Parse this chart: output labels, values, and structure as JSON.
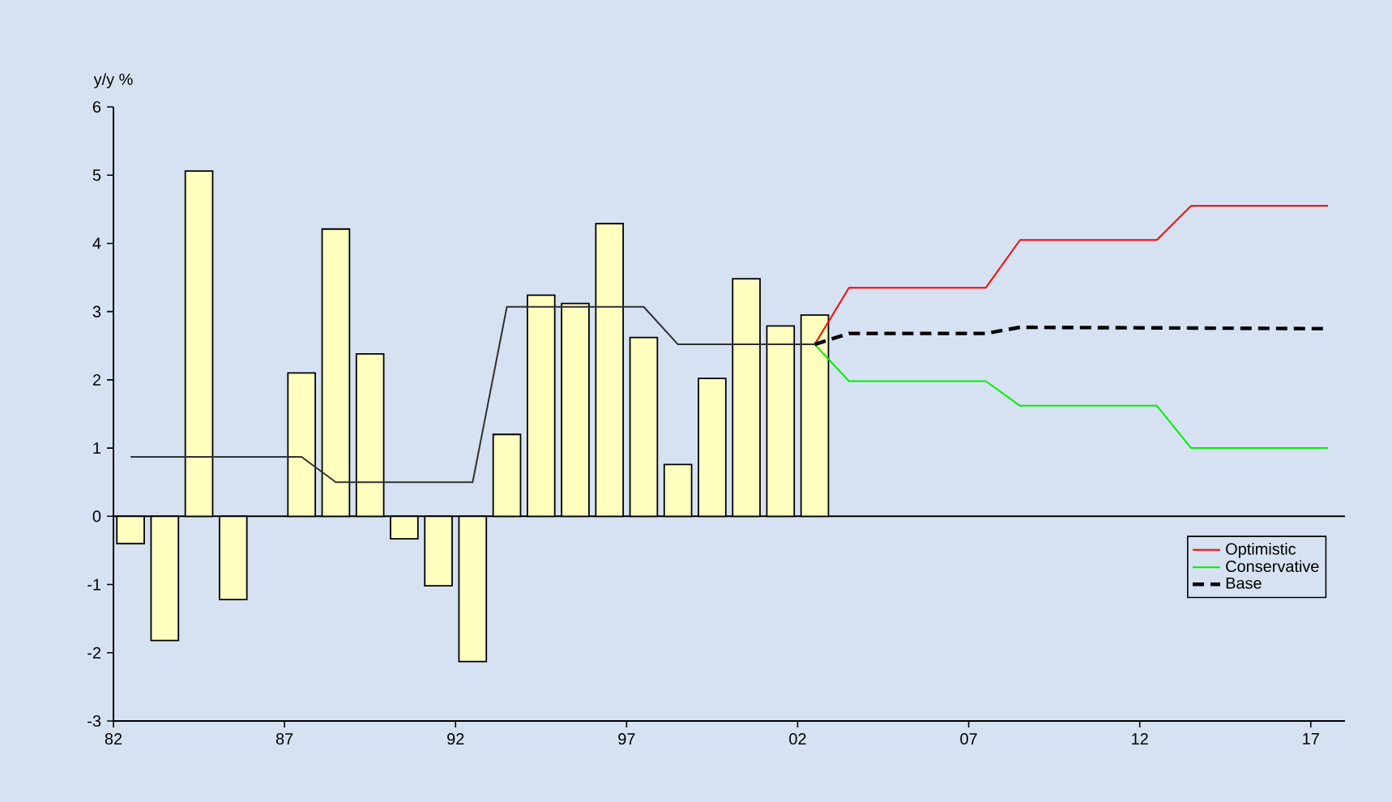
{
  "chart_data": {
    "type": "bar",
    "ylabel": "y/y %",
    "xlim": [
      1982,
      2018
    ],
    "ylim": [
      -3,
      6
    ],
    "xticks": [
      {
        "value": 1982,
        "label": "82"
      },
      {
        "value": 1987,
        "label": "87"
      },
      {
        "value": 1992,
        "label": "92"
      },
      {
        "value": 1997,
        "label": "97"
      },
      {
        "value": 2002,
        "label": "02"
      },
      {
        "value": 2007,
        "label": "07"
      },
      {
        "value": 2012,
        "label": "12"
      },
      {
        "value": 2017,
        "label": "17"
      }
    ],
    "yticks": [
      -3,
      -2,
      -1,
      0,
      1,
      2,
      3,
      4,
      5,
      6
    ],
    "legend": "bottom right",
    "ref_lines": [
      {
        "axis": "y",
        "value": 0,
        "color": "#000000"
      }
    ],
    "series": [
      {
        "color": "#ffffc0",
        "x": [
          1982.5,
          1983.5,
          1984.5,
          1985.5,
          1986.5,
          1987.5,
          1988.5,
          1989.5,
          1990.5,
          1991.5,
          1992.5,
          1993.5,
          1994.5,
          1995.5,
          1996.5,
          1997.5,
          1998.5,
          1999.5,
          2000.5,
          2001.5,
          2002.5
        ],
        "values": [
          -0.4,
          -1.82,
          5.06,
          -1.22,
          null,
          2.1,
          4.21,
          2.38,
          -0.33,
          -1.02,
          -2.13,
          1.2,
          3.24,
          3.12,
          4.29,
          2.62,
          0.76,
          2.02,
          3.48,
          2.79,
          2.95
        ]
      },
      {
        "type": "line",
        "color": "#303030",
        "x": [
          1982.5,
          1987.5,
          1988.5,
          1992.5,
          1993.5,
          1997.5,
          1998.5,
          2002.5
        ],
        "values": [
          0.87,
          0.87,
          0.5,
          0.5,
          3.07,
          3.07,
          2.52,
          2.52
        ]
      },
      {
        "type": "line",
        "name": "Optimistic",
        "color": "#ff0000",
        "x": [
          2002.5,
          2003.5,
          2007.5,
          2008.5,
          2012.5,
          2013.5,
          2017.5
        ],
        "values": [
          2.52,
          3.35,
          3.35,
          4.05,
          4.05,
          4.55,
          4.55
        ]
      },
      {
        "type": "line",
        "name": "Conservative",
        "color": "#00ee00",
        "x": [
          2002.5,
          2003.5,
          2007.5,
          2008.5,
          2012.5,
          2013.5,
          2017.5
        ],
        "values": [
          2.52,
          1.98,
          1.98,
          1.62,
          1.62,
          1.0,
          1.0
        ]
      },
      {
        "type": "line",
        "name": "Base",
        "color": "#000000",
        "line_style": "dashed",
        "x": [
          2002.5,
          2003.5,
          2007.5,
          2008.5,
          2017.5
        ],
        "values": [
          2.52,
          2.68,
          2.68,
          2.77,
          2.75
        ]
      }
    ]
  }
}
